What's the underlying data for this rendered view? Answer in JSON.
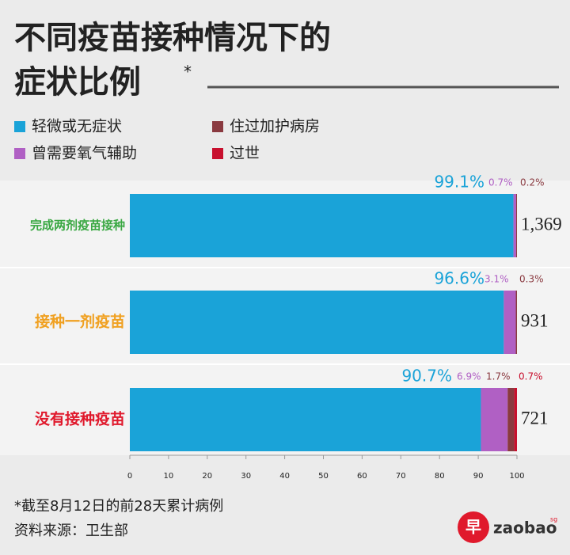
{
  "chart_data": {
    "type": "stacked-barh",
    "title_lines": [
      "不同疫苗接种情况下的",
      "症状比例"
    ],
    "title_mark": "*",
    "categories": [
      "完成两剂疫苗接种",
      "接种一剂疫苗",
      "没有接种疫苗"
    ],
    "category_colors": [
      "#3aa843",
      "#f0a020",
      "#e0192c"
    ],
    "series": [
      {
        "name": "轻微或无症状",
        "color": "#1aa3d8",
        "values": [
          99.1,
          96.6,
          90.7
        ],
        "value_labels": [
          "99.1%",
          "96.6%",
          "90.7%"
        ]
      },
      {
        "name": "曾需要氧气辅助",
        "color": "#b060c4",
        "values": [
          0.7,
          3.1,
          6.9
        ],
        "value_labels": [
          "0.7%",
          "3.1%",
          "6.9%"
        ]
      },
      {
        "name": "住过加护病房",
        "color": "#8a3a40",
        "values": [
          0.2,
          0.3,
          1.7
        ],
        "value_labels": [
          "0.2%",
          "0.3%",
          "1.7%"
        ]
      },
      {
        "name": "过世",
        "color": "#c8102e",
        "values": [
          null,
          null,
          0.7
        ],
        "value_labels": [
          null,
          null,
          "0.7%"
        ]
      }
    ],
    "case_counts": [
      "1,369",
      "931",
      "721"
    ],
    "xlim": [
      0,
      100
    ],
    "xticks": [
      0,
      10,
      20,
      30,
      40,
      50,
      60,
      70,
      80,
      90,
      100
    ],
    "footnotes": [
      "*截至8月12日的前28天累计病例",
      "资料来源：卫生部"
    ],
    "brand": {
      "logo": "早",
      "name": "zaobao",
      "suffix": "sg"
    }
  }
}
